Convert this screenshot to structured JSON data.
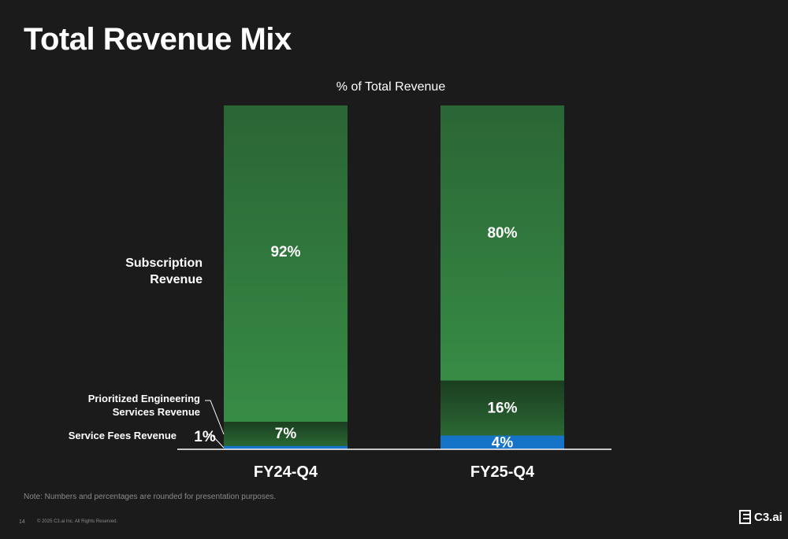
{
  "page": {
    "title": "Total Revenue Mix",
    "note": "Note: Numbers and percentages are rounded for presentation purposes.",
    "page_number": "14",
    "copyright": "© 2025 C3.ai Inc. All Rights Reserved.",
    "logo_text": "C3.ai"
  },
  "chart_data": {
    "type": "bar",
    "stacked": true,
    "title": "% of Total Revenue",
    "categories": [
      "FY24-Q4",
      "FY25-Q4"
    ],
    "ylim": [
      0,
      100
    ],
    "series": [
      {
        "name": "Service Fees Revenue",
        "values": [
          1,
          4
        ],
        "labels": [
          "1%",
          "4%"
        ],
        "color": "#1574c7"
      },
      {
        "name": "Prioritized Engineering Services Revenue",
        "values": [
          7,
          16
        ],
        "labels": [
          "7%",
          "16%"
        ],
        "color": "#24562a"
      },
      {
        "name": "Subscription Revenue",
        "values": [
          92,
          80
        ],
        "labels": [
          "92%",
          "80%"
        ],
        "color": "#2f7a3c"
      }
    ],
    "legend_labels": {
      "subscription": [
        "Subscription",
        "Revenue"
      ],
      "pes": [
        "Prioritized Engineering",
        "Services Revenue"
      ],
      "service_fees": "Service Fees Revenue"
    }
  }
}
